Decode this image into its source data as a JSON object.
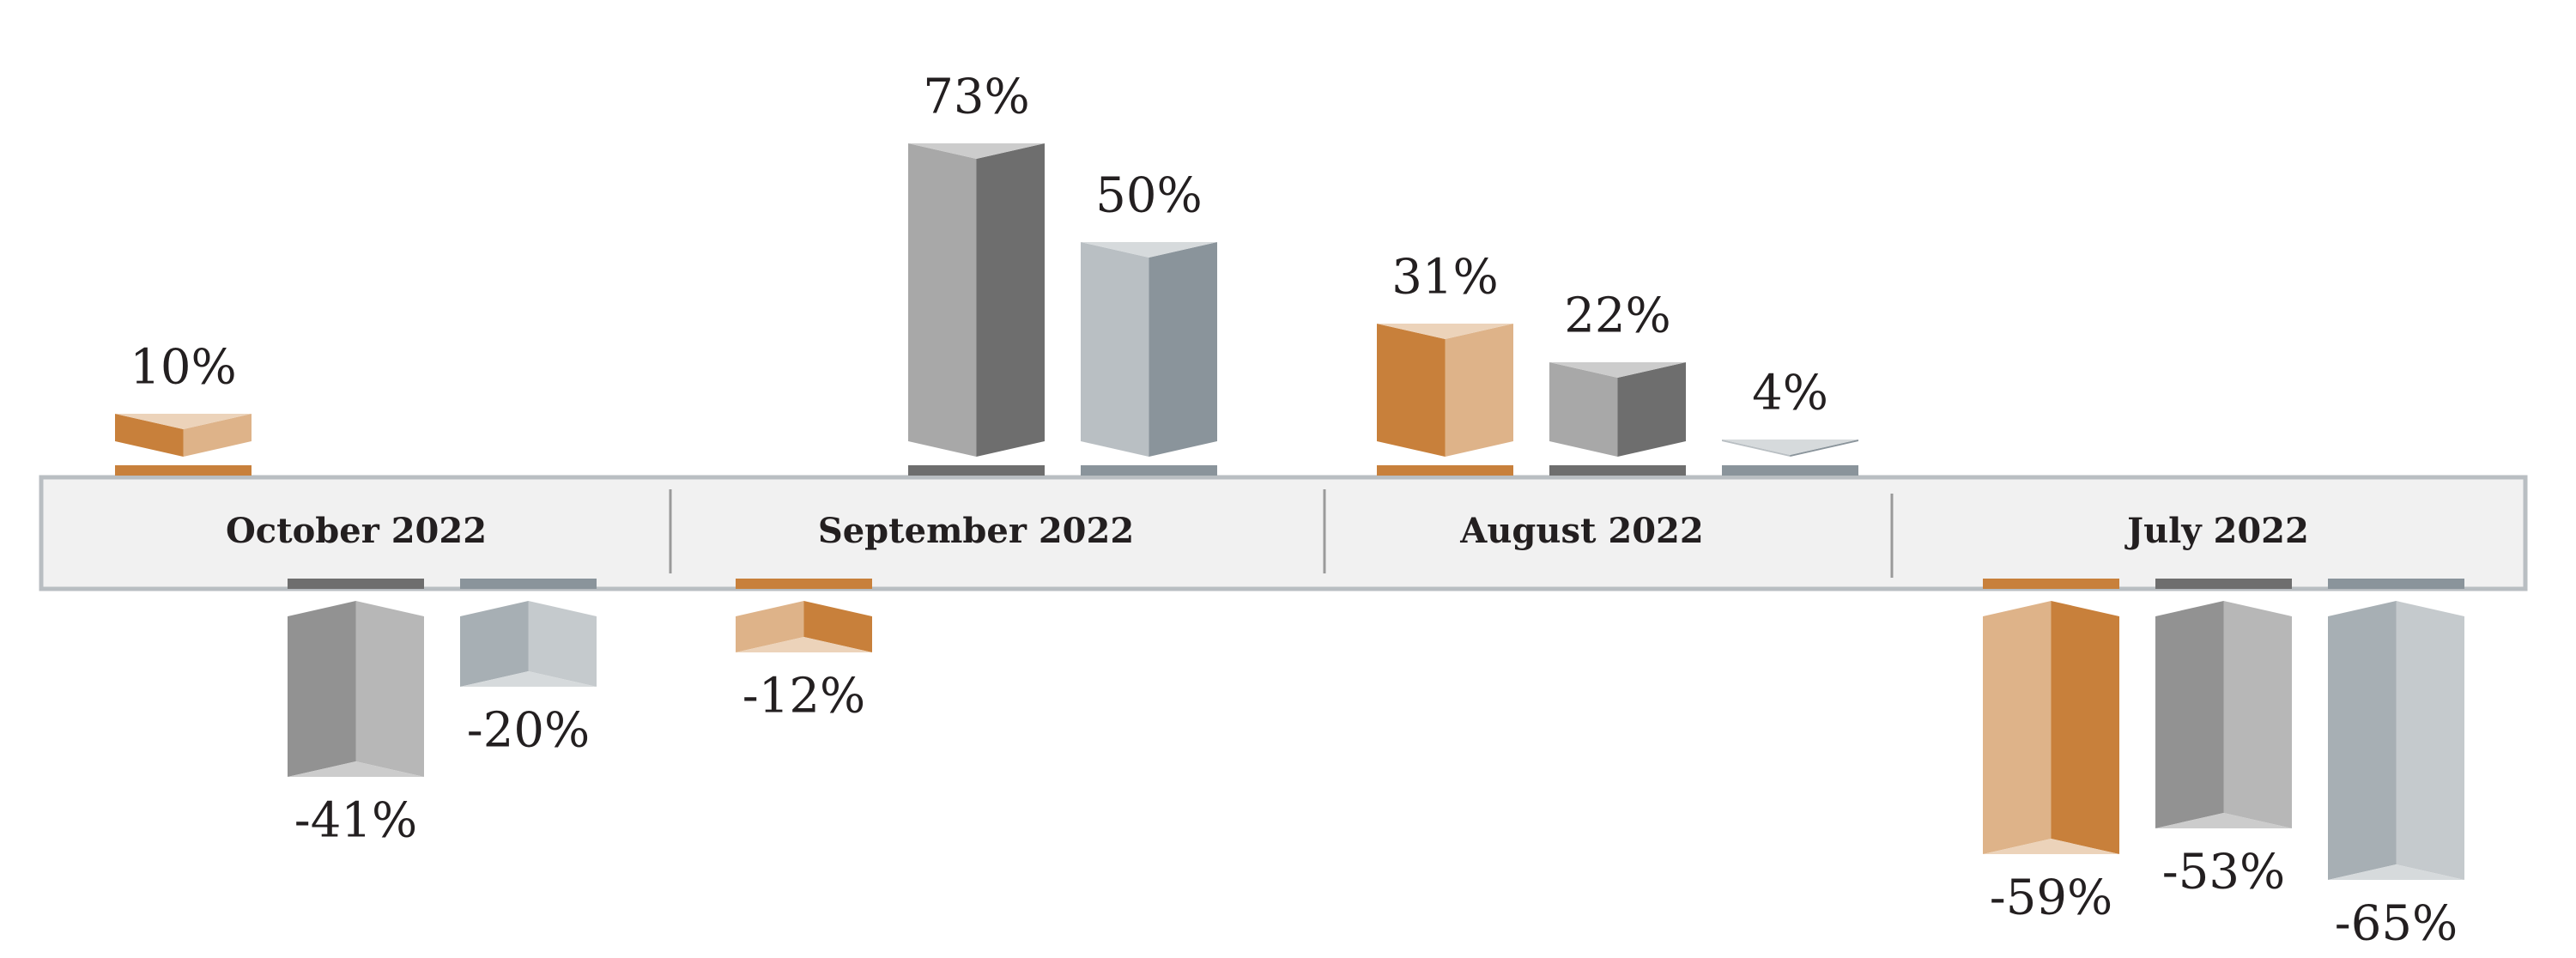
{
  "chart_data": {
    "type": "bar",
    "categories": [
      "October 2022",
      "September 2022",
      "August 2022",
      "July 2022"
    ],
    "series": [
      {
        "color": "#c8803b",
        "values": [
          10,
          -12,
          31,
          -59
        ],
        "value_labels": [
          "10%",
          "-12%",
          "31%",
          "-59%"
        ]
      },
      {
        "color": "#6e6e6e",
        "values": [
          -41,
          73,
          22,
          -53
        ],
        "value_labels": [
          "-41%",
          "73%",
          "22%",
          "-53%"
        ]
      },
      {
        "color": "#8a949b",
        "values": [
          -20,
          50,
          4,
          -65
        ],
        "value_labels": [
          "-20%",
          "50%",
          "4%",
          "-65%"
        ]
      }
    ]
  }
}
